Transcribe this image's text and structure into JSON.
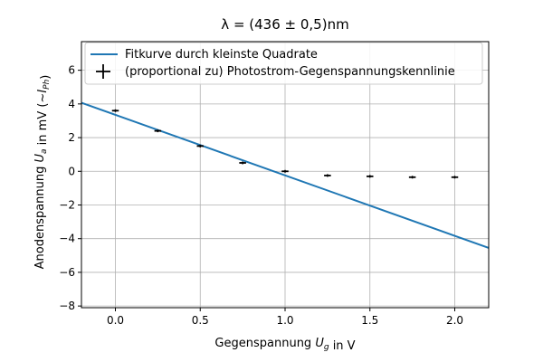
{
  "chart_data": {
    "type": "scatter",
    "title": "λ = (436 ± 0,5)nm",
    "xlabel": "Gegenspannung U_g in V",
    "ylabel": "Anodenspannung U_a in mV (~I_Ph)",
    "xlim": [
      -0.2,
      2.2
    ],
    "ylim": [
      -8.1,
      7.7
    ],
    "x_ticks": [
      0.0,
      0.5,
      1.0,
      1.5,
      2.0
    ],
    "x_tick_labels": [
      "0.0",
      "0.5",
      "1.0",
      "1.5",
      "2.0"
    ],
    "y_ticks": [
      -8,
      -6,
      -4,
      -2,
      0,
      2,
      4,
      6
    ],
    "y_tick_labels": [
      "−8",
      "−6",
      "−4",
      "−2",
      "0",
      "2",
      "4",
      "6"
    ],
    "grid": true,
    "legend_position": "top-left",
    "series": [
      {
        "name": "Fitkurve durch kleinste Quadrate",
        "kind": "line",
        "color": "#1f77b4",
        "x": [
          -0.2,
          2.2
        ],
        "y": [
          4.07,
          -4.55
        ]
      },
      {
        "name": "(proportional zu) Photostrom-Gegenspannungskennlinie",
        "kind": "errorbar",
        "color": "#000000",
        "x": [
          0.0,
          0.25,
          0.5,
          0.75,
          1.0,
          1.25,
          1.5,
          1.75,
          2.0
        ],
        "y": [
          3.6,
          2.4,
          1.5,
          0.5,
          0.0,
          -0.25,
          -0.3,
          -0.35,
          -0.35
        ],
        "xerr": 0.02,
        "yerr": 0.08
      }
    ]
  }
}
